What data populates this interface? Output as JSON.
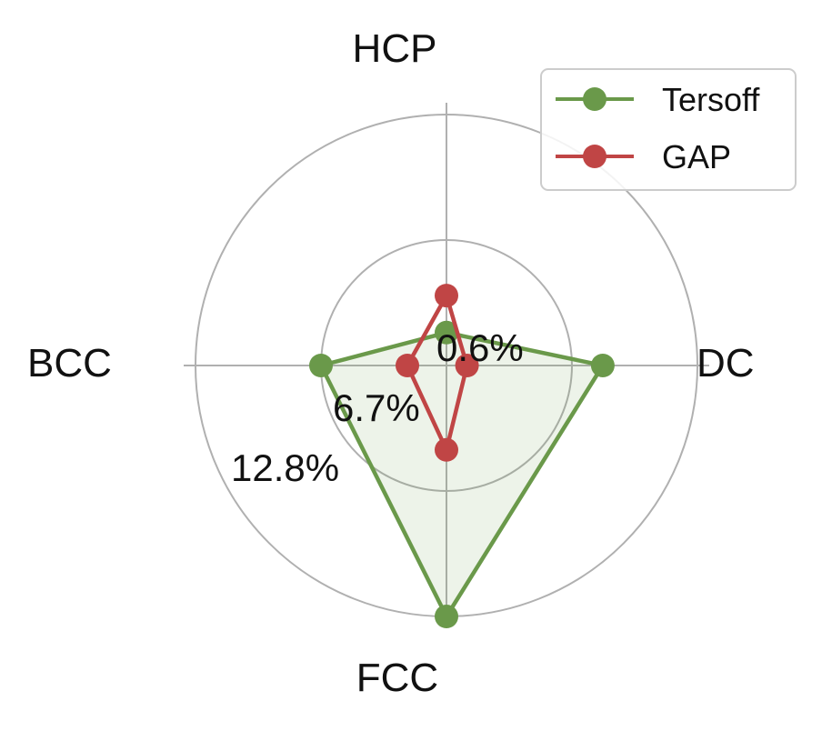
{
  "chart_data": {
    "type": "radar",
    "axes": [
      "HCP",
      "DC",
      "FCC",
      "BCC"
    ],
    "r_ticks": [
      0.6,
      6.7,
      12.8
    ],
    "r_tick_labels": [
      "0.6%",
      "6.7%",
      "12.8%"
    ],
    "rlim": [
      0.6,
      12.8
    ],
    "units": "%",
    "grid": true,
    "legend_position": "top-right",
    "series": [
      {
        "name": "Tersoff",
        "color": "#6a994a",
        "fill": true,
        "values": [
          2.2,
          8.2,
          12.8,
          6.7
        ]
      },
      {
        "name": "GAP",
        "color": "#c04545",
        "fill": false,
        "values": [
          4.0,
          1.6,
          4.7,
          2.5
        ]
      }
    ]
  }
}
